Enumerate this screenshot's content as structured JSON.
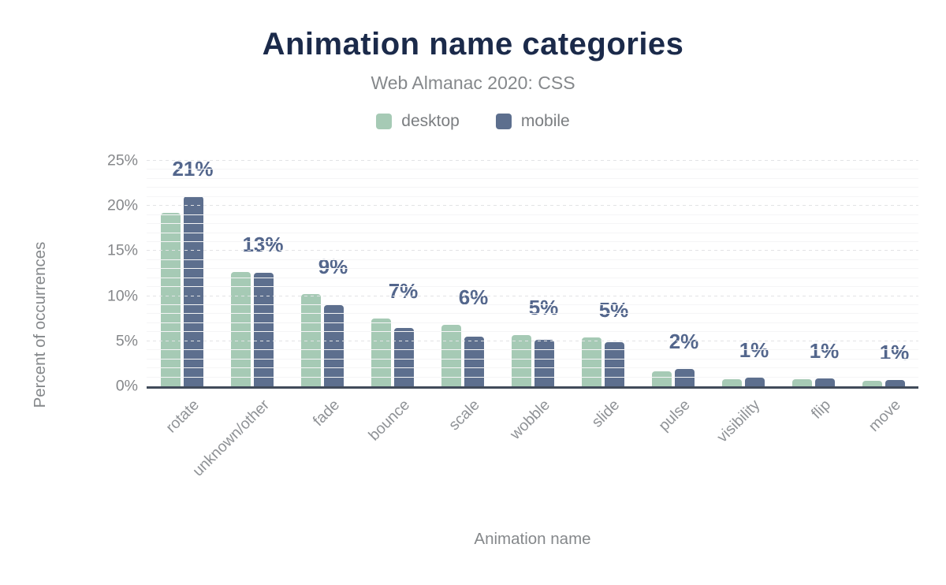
{
  "title": "Animation name categories",
  "subtitle": "Web Almanac 2020: CSS",
  "colors": {
    "title": "#1b2a4a",
    "subtitle": "#85888b",
    "desktop": "#a6cab5",
    "mobile": "#5d6f8e",
    "data_label": "#53668c",
    "axis_line": "#414b5a",
    "tick_label": "#85878a"
  },
  "chart_data": {
    "type": "bar",
    "title": "Animation name categories",
    "subtitle": "Web Almanac 2020: CSS",
    "categories": [
      "rotate",
      "unknown/other",
      "fade",
      "bounce",
      "scale",
      "wobble",
      "slide",
      "pulse",
      "visibility",
      "flip",
      "move"
    ],
    "series": [
      {
        "name": "desktop",
        "color": "#a6cab5",
        "values": [
          19.2,
          12.7,
          10.2,
          7.5,
          6.8,
          5.7,
          5.4,
          1.7,
          0.8,
          0.8,
          0.6
        ]
      },
      {
        "name": "mobile",
        "color": "#5d6f8e",
        "values": [
          21.1,
          12.6,
          9.0,
          6.5,
          5.5,
          5.2,
          4.9,
          1.9,
          1.0,
          0.9,
          0.7
        ]
      }
    ],
    "data_labels": [
      "21%",
      "13%",
      "9%",
      "7%",
      "6%",
      "5%",
      "5%",
      "2%",
      "1%",
      "1%",
      "1%"
    ],
    "xlabel": "Animation name",
    "ylabel": "Percent of occurrences",
    "ylim": [
      0,
      25
    ],
    "yticks": [
      {
        "value": 0,
        "label": "0%"
      },
      {
        "value": 5,
        "label": "5%"
      },
      {
        "value": 10,
        "label": "10%"
      },
      {
        "value": 15,
        "label": "15%"
      },
      {
        "value": 20,
        "label": "20%"
      },
      {
        "value": 25,
        "label": "25%"
      }
    ],
    "grid": {
      "minor_step": 1,
      "major_step": 5,
      "major_style": "dashed"
    },
    "legend_position": "top"
  }
}
